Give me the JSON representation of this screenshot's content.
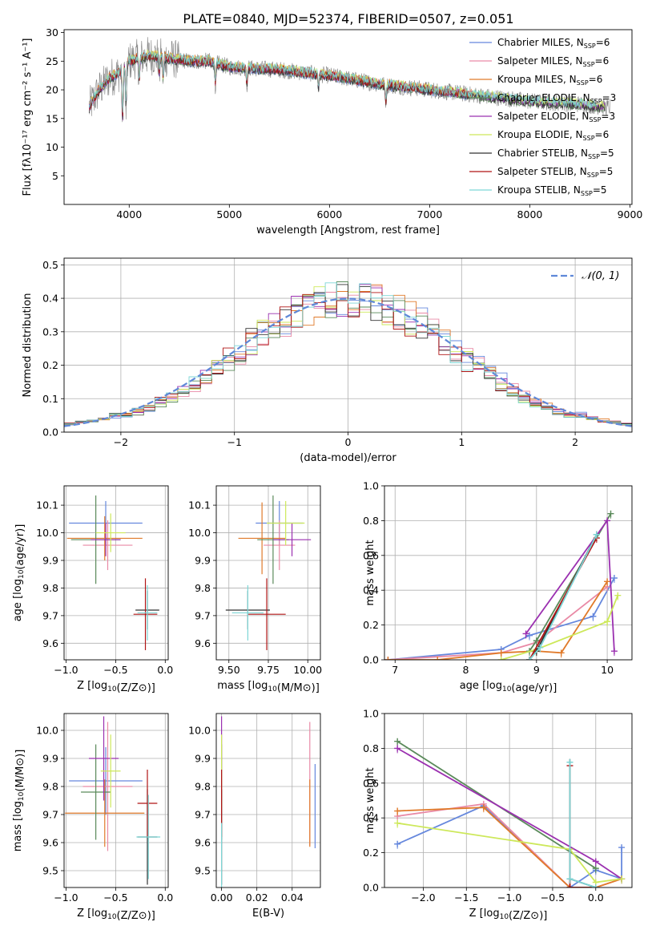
{
  "figure": {
    "title": "PLATE=0840, MJD=52374, FIBERID=0507, z=0.051"
  },
  "models": [
    {
      "name": "Chabrier MILES",
      "nssp": "6",
      "color": "#6688dd"
    },
    {
      "name": "Salpeter MILES",
      "nssp": "6",
      "color": "#e98aa6"
    },
    {
      "name": "Kroupa MILES",
      "nssp": "6",
      "color": "#e07a2a"
    },
    {
      "name": "Chabrier ELODIE",
      "nssp": "3",
      "color": "#5a8a5a"
    },
    {
      "name": "Salpeter ELODIE",
      "nssp": "3",
      "color": "#9b30b0"
    },
    {
      "name": "Kroupa ELODIE",
      "nssp": "6",
      "color": "#cde85a"
    },
    {
      "name": "Chabrier STELIB",
      "nssp": "5",
      "color": "#333333"
    },
    {
      "name": "Salpeter STELIB",
      "nssp": "5",
      "color": "#b01515"
    },
    {
      "name": "Kroupa STELIB",
      "nssp": "5",
      "color": "#7dd6d6"
    }
  ],
  "chart_data": [
    {
      "id": "spectrum",
      "type": "line",
      "xlabel": "wavelength [Angstrom, rest frame]",
      "ylabel": "Flux [fλ10⁻¹⁷ erg cm⁻² s⁻¹ A⁻¹]",
      "xlim": [
        3350,
        9020
      ],
      "ylim": [
        0,
        30.5
      ],
      "xticks": [
        4000,
        5000,
        6000,
        7000,
        8000,
        9000
      ],
      "yticks": [
        5,
        10,
        15,
        20,
        25,
        30
      ],
      "legend": "top-right",
      "data_color": "#808080",
      "continuum": [
        [
          3600,
          17
        ],
        [
          3700,
          20
        ],
        [
          3800,
          22
        ],
        [
          3900,
          23
        ],
        [
          4000,
          25
        ],
        [
          4200,
          26
        ],
        [
          4400,
          25.5
        ],
        [
          4600,
          25
        ],
        [
          4800,
          25
        ],
        [
          5000,
          24
        ],
        [
          5500,
          23.5
        ],
        [
          6000,
          22.5
        ],
        [
          6500,
          21
        ],
        [
          7000,
          20
        ],
        [
          7500,
          19
        ],
        [
          8000,
          18
        ],
        [
          8500,
          17.5
        ],
        [
          8750,
          17
        ]
      ],
      "data_range": [
        3600,
        8800
      ],
      "model_range": [
        3600,
        7420
      ],
      "elodie_range": [
        3600,
        8750
      ]
    },
    {
      "id": "residuals",
      "type": "histogram",
      "xlabel": "(data-model)/error",
      "ylabel": "Normed distribution",
      "xlim": [
        -2.5,
        2.5
      ],
      "ylim": [
        0,
        0.52
      ],
      "xticks": [
        -2,
        -1,
        0,
        1,
        2
      ],
      "yticks": [
        0.0,
        0.1,
        0.2,
        0.3,
        0.4,
        0.5
      ],
      "bin_width": 0.1,
      "legend": "top-right",
      "normal_label": "𝒩(0, 1)",
      "normal_color": "#5f88d8"
    },
    {
      "id": "age_vs_Z",
      "type": "errorbar",
      "xlabel": "Z [log10(Z/Z⊙)]",
      "ylabel": "age [log10(age/yr)]",
      "xlim": [
        -1.02,
        0.03
      ],
      "ylim": [
        9.54,
        10.17
      ],
      "xticks": [
        -1.0,
        -0.5,
        0.0
      ],
      "yticks": [
        9.6,
        9.7,
        9.8,
        9.9,
        10.0,
        10.1
      ],
      "points": [
        {
          "m": 0,
          "x": -0.6,
          "xerr": 0.37,
          "y": 10.035,
          "yerr": 0.08
        },
        {
          "m": 1,
          "x": -0.58,
          "xerr": 0.25,
          "y": 9.955,
          "yerr": 0.09
        },
        {
          "m": 2,
          "x": -0.61,
          "xerr": 0.38,
          "y": 9.98,
          "yerr": 0.08
        },
        {
          "m": 3,
          "x": -0.7,
          "xerr": 0.25,
          "y": 9.975,
          "yerr": 0.16
        },
        {
          "m": 4,
          "x": -0.6,
          "xerr": 0.15,
          "y": 9.975,
          "yerr": 0.06
        },
        {
          "m": 5,
          "x": -0.55,
          "xerr": 0.15,
          "y": 10.0,
          "yerr": 0.07
        },
        {
          "m": 6,
          "x": -0.18,
          "xerr": 0.12,
          "y": 9.72,
          "yerr": 0.07
        },
        {
          "m": 7,
          "x": -0.2,
          "xerr": 0.12,
          "y": 9.705,
          "yerr": 0.13
        },
        {
          "m": 8,
          "x": -0.18,
          "xerr": 0.1,
          "y": 9.71,
          "yerr": 0.1
        }
      ]
    },
    {
      "id": "age_vs_mass",
      "type": "errorbar",
      "xlabel": "mass [log10(M/M⊙)]",
      "ylabel": "",
      "xlim": [
        9.42,
        10.08
      ],
      "ylim": [
        9.54,
        10.17
      ],
      "xticks": [
        9.5,
        9.75,
        10.0
      ],
      "yticks": [
        9.6,
        9.7,
        9.8,
        9.9,
        10.0,
        10.1
      ],
      "points": [
        {
          "m": 0,
          "x": 9.82,
          "xerr": 0.15,
          "y": 10.035,
          "yerr": 0.08
        },
        {
          "m": 1,
          "x": 9.82,
          "xerr": 0.1,
          "y": 9.955,
          "yerr": 0.09
        },
        {
          "m": 2,
          "x": 9.71,
          "xerr": 0.15,
          "y": 9.98,
          "yerr": 0.13
        },
        {
          "m": 3,
          "x": 9.78,
          "xerr": 0.1,
          "y": 9.975,
          "yerr": 0.16
        },
        {
          "m": 4,
          "x": 9.9,
          "xerr": 0.12,
          "y": 9.975,
          "yerr": 0.06
        },
        {
          "m": 5,
          "x": 9.86,
          "xerr": 0.12,
          "y": 10.035,
          "yerr": 0.08
        },
        {
          "m": 6,
          "x": 9.62,
          "xerr": 0.14,
          "y": 9.72,
          "yerr": 0.07
        },
        {
          "m": 7,
          "x": 9.74,
          "xerr": 0.12,
          "y": 9.705,
          "yerr": 0.13
        },
        {
          "m": 8,
          "x": 9.62,
          "xerr": 0.1,
          "y": 9.71,
          "yerr": 0.1
        }
      ]
    },
    {
      "id": "weight_vs_age",
      "type": "line",
      "xlabel": "age [log10(age/yr)]",
      "ylabel": "mass weight",
      "xlim": [
        6.85,
        10.35
      ],
      "ylim": [
        0,
        1.0
      ],
      "xticks": [
        7,
        8,
        9,
        10
      ],
      "yticks": [
        0.0,
        0.2,
        0.4,
        0.6,
        0.8,
        1.0
      ],
      "series": [
        {
          "m": 0,
          "x": [
            6.9,
            8.5,
            8.9,
            9.8,
            10.1
          ],
          "y": [
            0.0,
            0.06,
            0.14,
            0.25,
            0.47
          ]
        },
        {
          "m": 1,
          "x": [
            6.9,
            8.5,
            9.0,
            10.0
          ],
          "y": [
            0.0,
            0.04,
            0.1,
            0.42
          ]
        },
        {
          "m": 2,
          "x": [
            6.9,
            7.6,
            8.5,
            9.0,
            9.35,
            10.0
          ],
          "y": [
            0.0,
            0.0,
            0.04,
            0.05,
            0.04,
            0.45
          ]
        },
        {
          "m": 3,
          "x": [
            8.9,
            9.0,
            10.05
          ],
          "y": [
            0.05,
            0.11,
            0.84
          ]
        },
        {
          "m": 4,
          "x": [
            8.85,
            10.0,
            10.1
          ],
          "y": [
            0.15,
            0.8,
            0.05
          ]
        },
        {
          "m": 5,
          "x": [
            8.5,
            9.0,
            10.0,
            10.15
          ],
          "y": [
            0.0,
            0.06,
            0.22,
            0.37
          ]
        },
        {
          "m": 6,
          "x": [
            8.9,
            9.0,
            9.85
          ],
          "y": [
            0.0,
            0.05,
            0.72
          ]
        },
        {
          "m": 7,
          "x": [
            8.9,
            9.85
          ],
          "y": [
            0.0,
            0.7
          ]
        },
        {
          "m": 8,
          "x": [
            8.9,
            9.05,
            9.85
          ],
          "y": [
            0.0,
            0.07,
            0.72
          ]
        }
      ]
    },
    {
      "id": "mass_vs_Z",
      "type": "errorbar",
      "xlabel": "Z [log10(Z/Z⊙)]",
      "ylabel": "mass [log10(M/M⊙)]",
      "xlim": [
        -1.02,
        0.03
      ],
      "ylim": [
        9.44,
        10.06
      ],
      "xticks": [
        -1.0,
        -0.5,
        0.0
      ],
      "yticks": [
        9.5,
        9.6,
        9.7,
        9.8,
        9.9,
        10.0
      ],
      "points": [
        {
          "m": 0,
          "x": -0.6,
          "xerr": 0.37,
          "y": 9.82,
          "yerr": 0.12
        },
        {
          "m": 1,
          "x": -0.58,
          "xerr": 0.25,
          "y": 9.8,
          "yerr": 0.23
        },
        {
          "m": 2,
          "x": -0.61,
          "xerr": 0.4,
          "y": 9.705,
          "yerr": 0.12
        },
        {
          "m": 3,
          "x": -0.7,
          "xerr": 0.15,
          "y": 9.78,
          "yerr": 0.17
        },
        {
          "m": 4,
          "x": -0.62,
          "xerr": 0.15,
          "y": 9.9,
          "yerr": 0.15
        },
        {
          "m": 5,
          "x": -0.55,
          "xerr": 0.1,
          "y": 9.855,
          "yerr": 0.13
        },
        {
          "m": 6,
          "x": -0.18,
          "xerr": 0.1,
          "y": 9.62,
          "yerr": 0.17
        },
        {
          "m": 7,
          "x": -0.18,
          "xerr": 0.1,
          "y": 9.74,
          "yerr": 0.12
        },
        {
          "m": 8,
          "x": -0.17,
          "xerr": 0.12,
          "y": 9.62,
          "yerr": 0.15
        }
      ]
    },
    {
      "id": "mass_vs_ebv",
      "type": "errorbar",
      "xlabel": "E(B-V)",
      "ylabel": "",
      "xlim": [
        -0.003,
        0.056
      ],
      "ylim": [
        9.44,
        10.06
      ],
      "xticks": [
        0.0,
        0.02,
        0.04
      ],
      "yticks": [
        9.5,
        9.6,
        9.7,
        9.8,
        9.9,
        10.0
      ],
      "points": [
        {
          "m": 0,
          "x": 0.053,
          "xerr": 0.0,
          "y": 9.73,
          "yerr": 0.15
        },
        {
          "m": 1,
          "x": 0.05,
          "xerr": 0.0,
          "y": 9.81,
          "yerr": 0.22
        },
        {
          "m": 2,
          "x": 0.05,
          "xerr": 0.0,
          "y": 9.705,
          "yerr": 0.12
        },
        {
          "m": 3,
          "x": 0.0,
          "xerr": 0.0,
          "y": 9.78,
          "yerr": 0.17
        },
        {
          "m": 4,
          "x": 0.0,
          "xerr": 0.0,
          "y": 9.9,
          "yerr": 0.15
        },
        {
          "m": 5,
          "x": 0.0,
          "xerr": 0.0,
          "y": 9.855,
          "yerr": 0.13
        },
        {
          "m": 6,
          "x": 0.0,
          "xerr": 0.0,
          "y": 9.62,
          "yerr": 0.17
        },
        {
          "m": 7,
          "x": 0.0,
          "xerr": 0.0,
          "y": 9.74,
          "yerr": 0.12
        },
        {
          "m": 8,
          "x": 0.0,
          "xerr": 0.0,
          "y": 9.55,
          "yerr": 0.12
        }
      ]
    },
    {
      "id": "weight_vs_Z",
      "type": "line",
      "xlabel": "Z [log10(Z/Z⊙)]",
      "ylabel": "mass weight",
      "xlim": [
        -2.45,
        0.42
      ],
      "ylim": [
        0,
        1.0
      ],
      "xticks": [
        -2.0,
        -1.5,
        -1.0,
        -0.5,
        0.0
      ],
      "yticks": [
        0.0,
        0.2,
        0.4,
        0.6,
        0.8,
        1.0
      ],
      "series": [
        {
          "m": 0,
          "x": [
            -2.3,
            -1.3,
            -0.3,
            0.0,
            0.3,
            0.3
          ],
          "y": [
            0.25,
            0.47,
            0.0,
            0.1,
            0.05,
            0.23
          ]
        },
        {
          "m": 1,
          "x": [
            -2.3,
            -1.3,
            -0.3,
            0.0,
            0.3
          ],
          "y": [
            0.41,
            0.48,
            0.0,
            0.0,
            0.05
          ]
        },
        {
          "m": 2,
          "x": [
            -2.3,
            -1.3,
            -0.3,
            0.0,
            0.3
          ],
          "y": [
            0.44,
            0.46,
            0.0,
            0.0,
            0.05
          ]
        },
        {
          "m": 3,
          "x": [
            -2.3,
            0.0
          ],
          "y": [
            0.84,
            0.11
          ]
        },
        {
          "m": 4,
          "x": [
            -2.3,
            0.0,
            0.3
          ],
          "y": [
            0.8,
            0.15,
            0.05
          ]
        },
        {
          "m": 5,
          "x": [
            -2.3,
            -0.3,
            0.0,
            0.3
          ],
          "y": [
            0.37,
            0.22,
            0.03,
            0.05
          ]
        },
        {
          "m": 6,
          "x": [
            -0.3,
            -0.3,
            0.0
          ],
          "y": [
            0.72,
            0.05,
            0.0
          ]
        },
        {
          "m": 7,
          "x": [
            -0.3,
            -0.3,
            0.0
          ],
          "y": [
            0.7,
            0.0,
            0.0
          ]
        },
        {
          "m": 8,
          "x": [
            -0.3,
            -0.3,
            0.0
          ],
          "y": [
            0.72,
            0.05,
            0.0
          ]
        }
      ]
    }
  ]
}
